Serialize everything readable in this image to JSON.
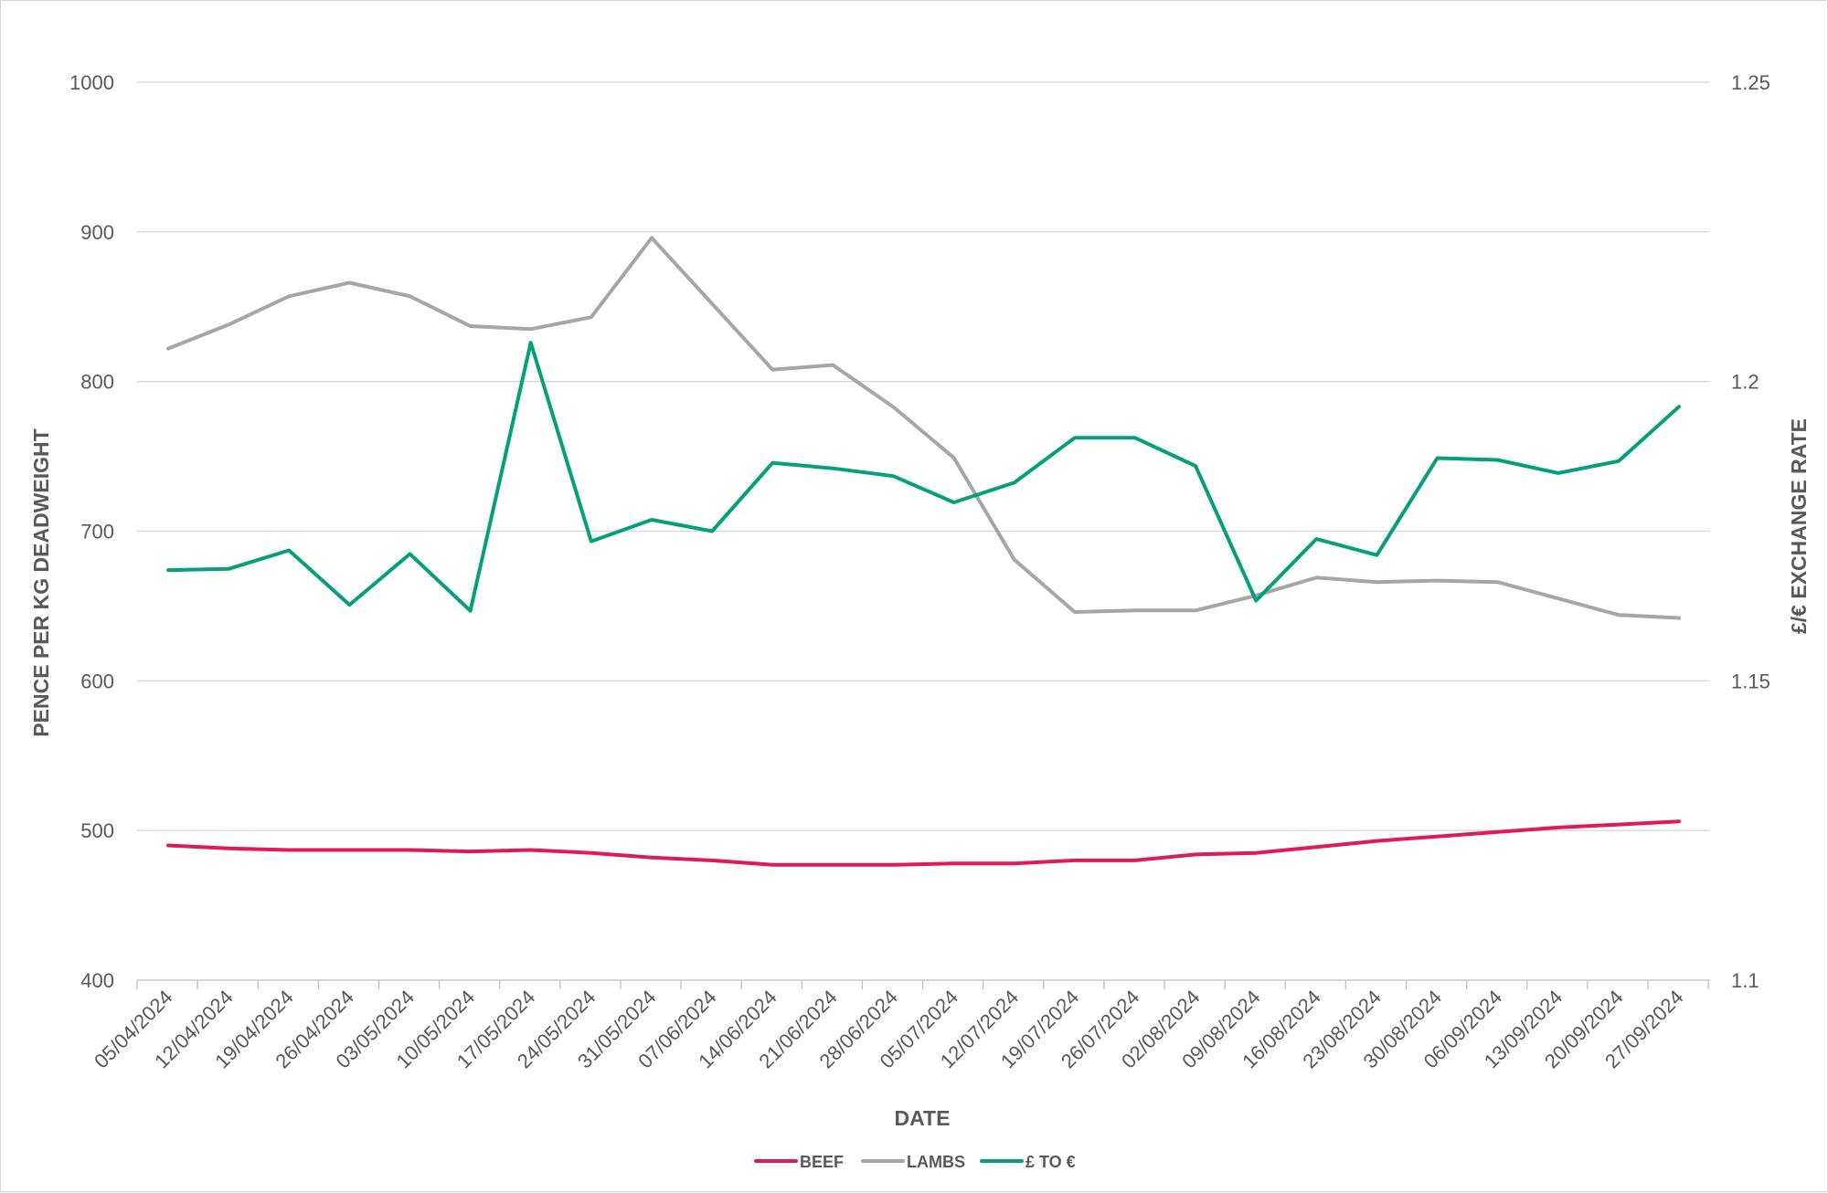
{
  "chart_data": {
    "type": "line",
    "xlabel": "DATE",
    "ylabel": "PENCE PER KG DEADWEIGHT",
    "y2label": "£/€ EXCHANGE RATE",
    "ylim": [
      400,
      1000
    ],
    "yticks": [
      "400",
      "500",
      "600",
      "700",
      "800",
      "900",
      "1000"
    ],
    "y2lim": [
      1.1,
      1.25
    ],
    "y2ticks": [
      "1.1",
      "1.15",
      "1.2",
      "1.25"
    ],
    "grid": "horizontal",
    "legend_position": "bottom-center",
    "categories": [
      "05/04/2024",
      "12/04/2024",
      "19/04/2024",
      "26/04/2024",
      "03/05/2024",
      "10/05/2024",
      "17/05/2024",
      "24/05/2024",
      "31/05/2024",
      "07/06/2024",
      "14/06/2024",
      "21/06/2024",
      "28/06/2024",
      "05/07/2024",
      "12/07/2024",
      "19/07/2024",
      "26/07/2024",
      "02/08/2024",
      "09/08/2024",
      "16/08/2024",
      "23/08/2024",
      "30/08/2024",
      "06/09/2024",
      "13/09/2024",
      "20/09/2024",
      "27/09/2024"
    ],
    "series": [
      {
        "name": "BEEF",
        "axis": "left",
        "color": "#e0195a",
        "values": [
          490,
          488,
          487,
          487,
          487,
          486,
          487,
          485,
          482,
          480,
          477,
          477,
          477,
          478,
          478,
          480,
          480,
          484,
          485,
          489,
          493,
          496,
          499,
          502,
          504,
          506
        ]
      },
      {
        "name": "LAMBS",
        "axis": "left",
        "color": "#a6a6a6",
        "values": [
          822,
          838,
          857,
          866,
          857,
          837,
          835,
          843,
          896,
          852,
          808,
          811,
          783,
          749,
          681,
          646,
          647,
          647,
          657,
          669,
          666,
          667,
          666,
          655,
          644,
          642
        ]
      },
      {
        "name": "£ TO €",
        "axis": "right",
        "color": "#05a07a",
        "values": [
          1.1685,
          1.1687,
          1.1718,
          1.1627,
          1.1712,
          1.1617,
          1.2065,
          1.1733,
          1.1769,
          1.175,
          1.1864,
          1.1855,
          1.1842,
          1.1798,
          1.1831,
          1.1906,
          1.1906,
          1.1859,
          1.1634,
          1.1737,
          1.171,
          1.1872,
          1.1869,
          1.1847,
          1.1867,
          1.1958
        ]
      }
    ]
  }
}
